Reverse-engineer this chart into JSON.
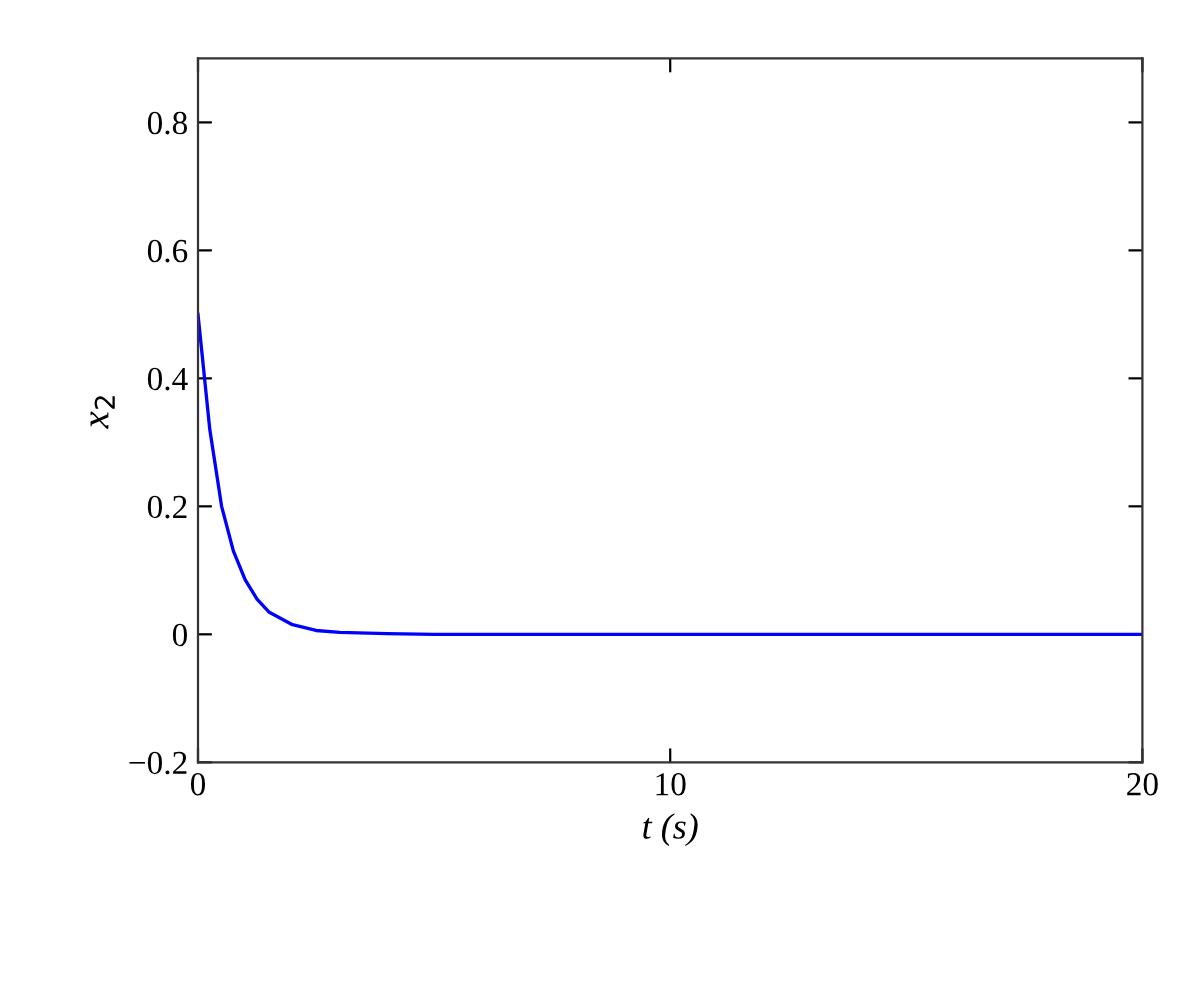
{
  "chart_data": {
    "type": "line",
    "xlabel": "t (s)",
    "ylabel": "x$_{2}$",
    "xlim": [
      0,
      20
    ],
    "ylim": [
      -0.2,
      0.9
    ],
    "xticks": [
      0,
      10,
      20
    ],
    "yticks": [
      {
        "value": -0.2,
        "label": "−0.2"
      },
      0,
      0.2,
      0.4,
      0.6,
      0.8
    ],
    "grid": false,
    "legend": false,
    "marker": "none",
    "line_style": "solid",
    "series": [
      {
        "color": "#0000ff",
        "x": [
          0,
          0.25,
          0.5,
          0.75,
          1,
          1.25,
          1.5,
          2,
          2.5,
          3,
          4,
          5,
          10,
          20
        ],
        "values": [
          0.5,
          0.32,
          0.2,
          0.13,
          0.085,
          0.055,
          0.035,
          0.015,
          0.006,
          0.003,
          0.001,
          0,
          0,
          0
        ]
      }
    ]
  }
}
